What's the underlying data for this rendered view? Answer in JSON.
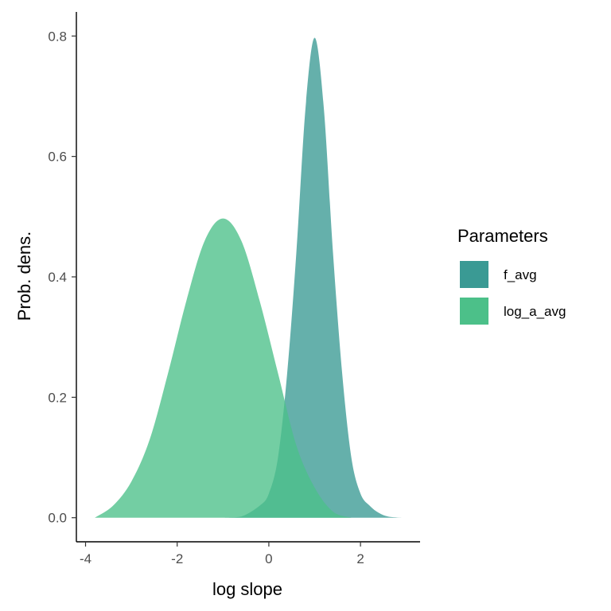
{
  "chart_data": {
    "type": "area",
    "xlabel": "log slope",
    "ylabel": "Prob. dens.",
    "xlim": [
      -4.2,
      3.3
    ],
    "ylim": [
      -0.04,
      0.84
    ],
    "xticks": [
      -4,
      -2,
      0,
      2
    ],
    "xtick_labels": [
      "-4",
      "-2",
      "0",
      "2"
    ],
    "yticks": [
      0.0,
      0.2,
      0.4,
      0.6,
      0.8
    ],
    "ytick_labels": [
      "0.0",
      "0.2",
      "0.4",
      "0.6",
      "0.8"
    ],
    "grid": false,
    "legend": {
      "title": "Parameters",
      "position": "right"
    },
    "series": [
      {
        "name": "f_avg",
        "color": "#3a9a94",
        "x": [
          -1.0,
          -0.6,
          -0.2,
          0.0,
          0.2,
          0.4,
          0.6,
          0.8,
          1.0,
          1.2,
          1.4,
          1.6,
          1.8,
          2.0,
          2.2,
          2.4,
          2.6,
          2.9
        ],
        "y": [
          0.0,
          0.002,
          0.02,
          0.04,
          0.1,
          0.24,
          0.44,
          0.68,
          0.797,
          0.68,
          0.44,
          0.24,
          0.1,
          0.04,
          0.02,
          0.008,
          0.002,
          0.0
        ]
      },
      {
        "name": "log_a_avg",
        "color": "#4cc089",
        "x": [
          -3.8,
          -3.4,
          -3.0,
          -2.6,
          -2.2,
          -1.8,
          -1.4,
          -1.0,
          -0.6,
          -0.2,
          0.2,
          0.6,
          1.0,
          1.4,
          1.8
        ],
        "y": [
          0.0,
          0.02,
          0.06,
          0.13,
          0.24,
          0.36,
          0.46,
          0.497,
          0.46,
          0.36,
          0.24,
          0.12,
          0.05,
          0.01,
          0.0
        ]
      }
    ]
  }
}
